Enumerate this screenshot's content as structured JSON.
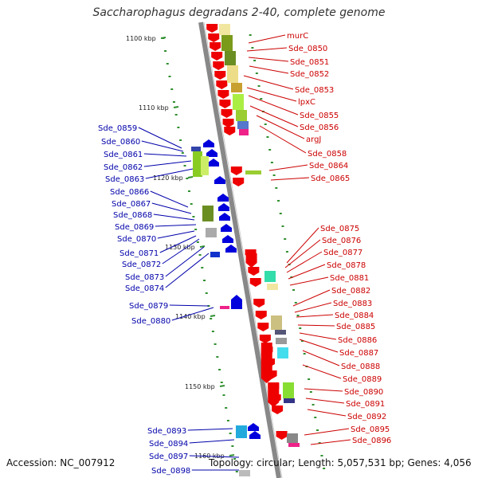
{
  "title": "Saccharophagus degradans 2-40, complete genome",
  "footer": {
    "accession": "Accession: NC_007912",
    "topology": "Topology: circular; Length: 5,057,531 bp; Genes: 4,056"
  },
  "colors": {
    "forward_gene": "#ee0000",
    "reverse_gene": "#0000dd",
    "forward_label": "#cc0000",
    "reverse_label": "#0000aa",
    "backbone": "#888888",
    "tick": "#2f8f2f"
  },
  "scale_labels": [
    "1100 kbp",
    "1110 kbp",
    "1120 kbp",
    "1130 kbp",
    "1140 kbp",
    "1150 kbp",
    "1160 kbp"
  ],
  "forward_labels": [
    "murC",
    "Sde_0850",
    "Sde_0851",
    "Sde_0852",
    "Sde_0853",
    "lpxC",
    "Sde_0855",
    "Sde_0856",
    "argJ",
    "Sde_0858",
    "Sde_0864",
    "Sde_0865",
    "Sde_0875",
    "Sde_0876",
    "Sde_0877",
    "Sde_0878",
    "Sde_0881",
    "Sde_0882",
    "Sde_0883",
    "Sde_0884",
    "Sde_0885",
    "Sde_0886",
    "Sde_0887",
    "Sde_0888",
    "Sde_0889",
    "Sde_0890",
    "Sde_0891",
    "Sde_0892",
    "Sde_0895",
    "Sde_0896"
  ],
  "reverse_labels": [
    "Sde_0859",
    "Sde_0860",
    "Sde_0861",
    "Sde_0862",
    "Sde_0863",
    "Sde_0866",
    "Sde_0867",
    "Sde_0868",
    "Sde_0869",
    "Sde_0870",
    "Sde_0871",
    "Sde_0872",
    "Sde_0873",
    "Sde_0874",
    "Sde_0879",
    "Sde_0880",
    "Sde_0893",
    "Sde_0894",
    "Sde_0897",
    "Sde_0898"
  ]
}
